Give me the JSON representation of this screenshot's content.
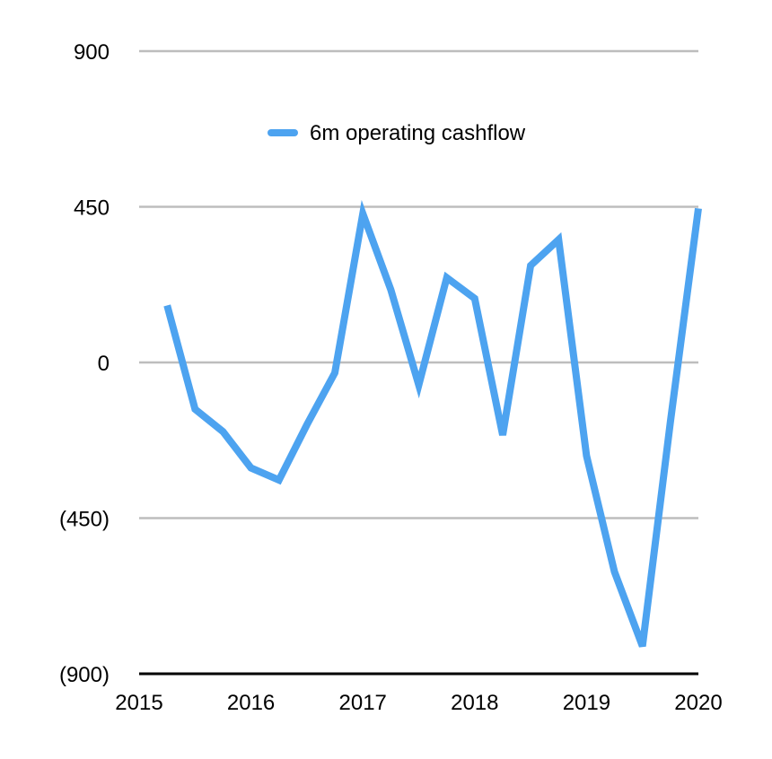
{
  "chart_data": {
    "type": "line",
    "title": "",
    "xlabel": "",
    "ylabel": "",
    "xlim": [
      2015,
      2020
    ],
    "ylim": [
      -900,
      900
    ],
    "x_ticks": [
      2015,
      2016,
      2017,
      2018,
      2019,
      2020
    ],
    "x_tick_labels": [
      "2015",
      "2016",
      "2017",
      "2018",
      "2019",
      "2020"
    ],
    "y_ticks": [
      900,
      450,
      0,
      -450,
      -900
    ],
    "y_tick_labels": [
      "900",
      "450",
      "0",
      "(450)",
      "(900)"
    ],
    "grid": "horizontal",
    "legend_position": "top-center",
    "colors": {
      "series": "#4da3f0",
      "grid": "#bdbdbd",
      "axis": "#000000"
    },
    "series": [
      {
        "name": "6m operating cashflow",
        "x": [
          2015.25,
          2015.5,
          2015.75,
          2016.0,
          2016.25,
          2016.5,
          2016.75,
          2017.0,
          2017.25,
          2017.5,
          2017.75,
          2018.0,
          2018.25,
          2018.5,
          2018.75,
          2019.0,
          2019.25,
          2019.5,
          2019.75,
          2020.0
        ],
        "values": [
          165,
          -135,
          -200,
          -305,
          -340,
          -180,
          -30,
          430,
          210,
          -65,
          245,
          185,
          -210,
          280,
          355,
          -270,
          -605,
          -820,
          -170,
          445
        ]
      }
    ]
  }
}
